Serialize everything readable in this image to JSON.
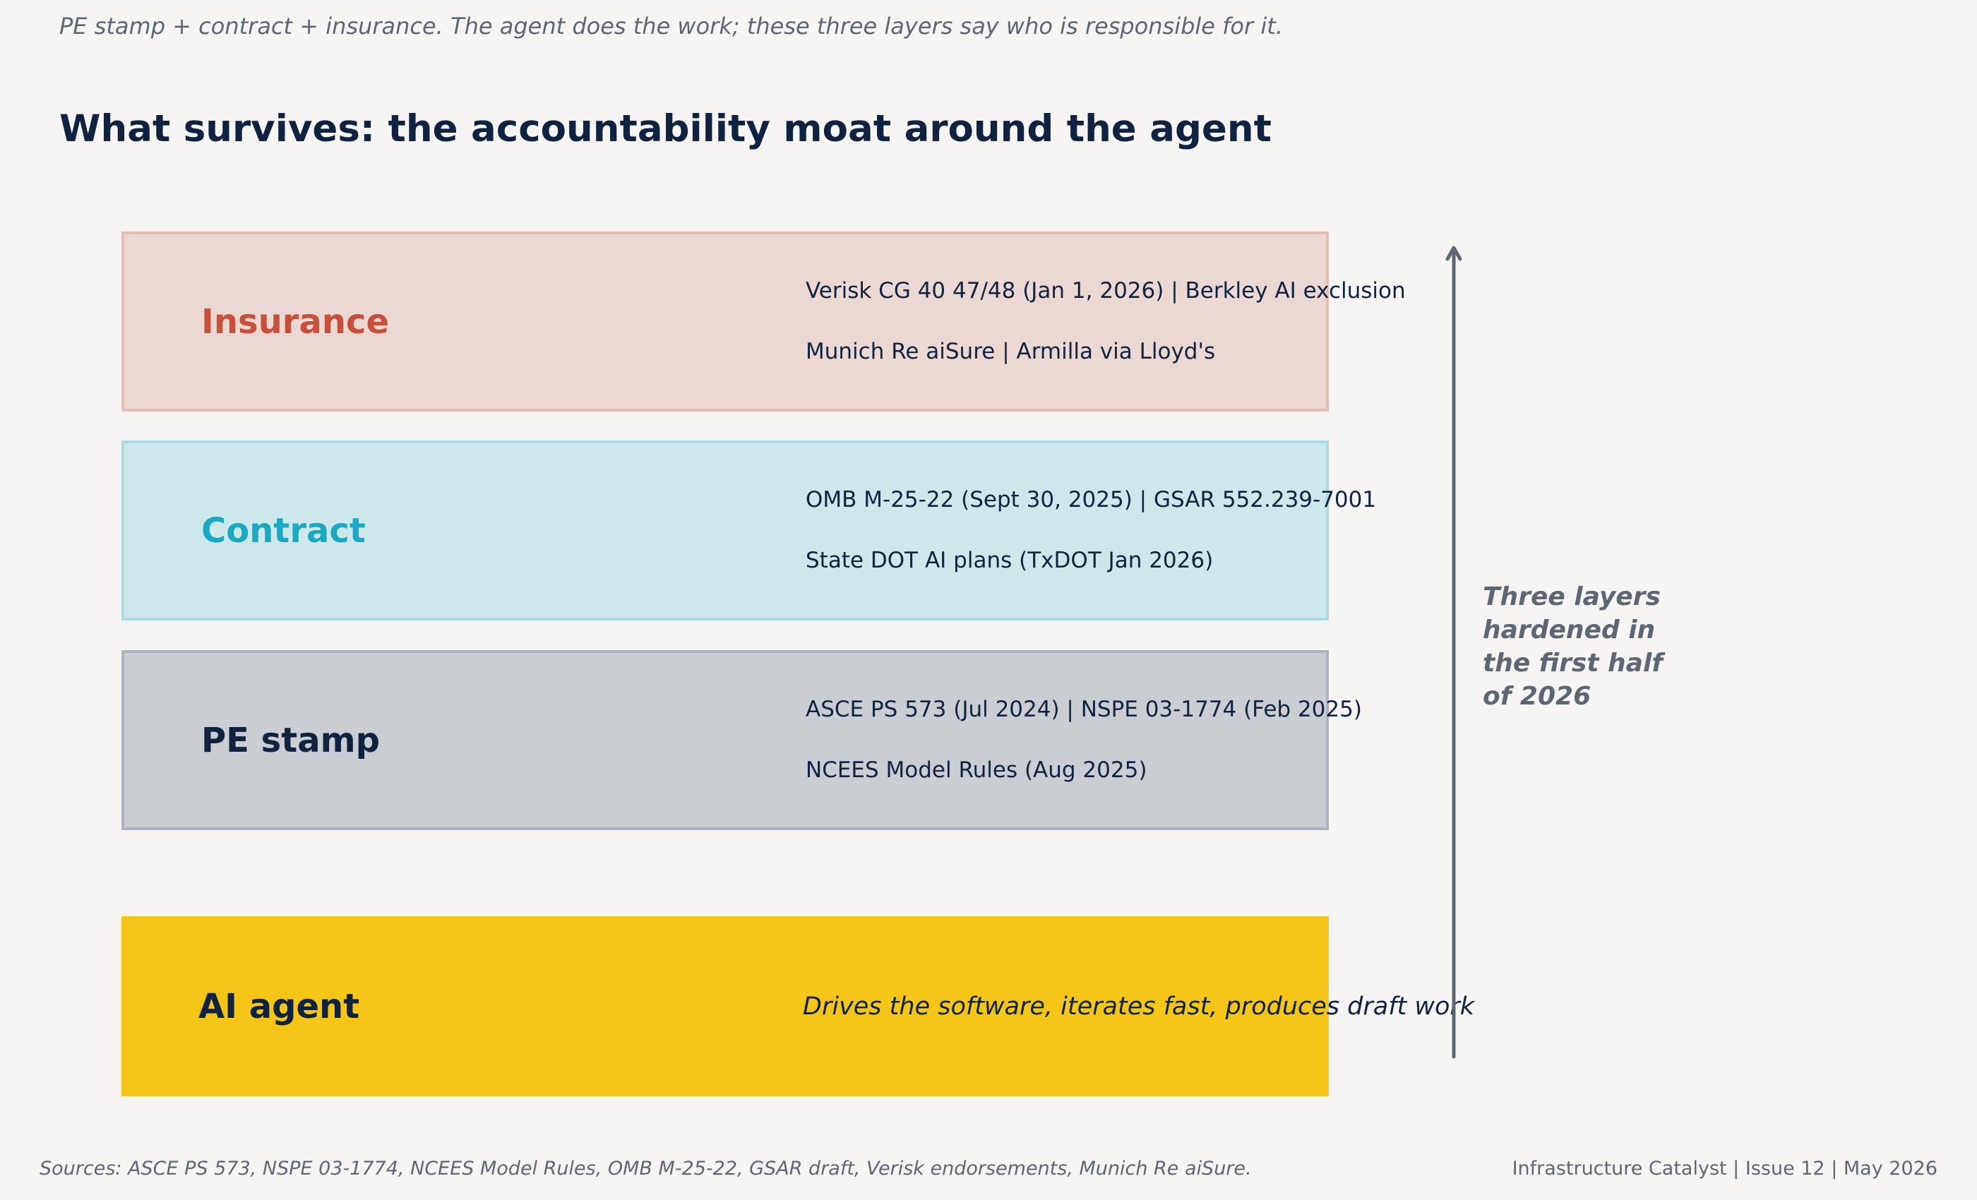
{
  "header": {
    "subtitle": "PE stamp + contract + insurance. The agent does the work; these three layers say who is responsible for it.",
    "title": "What survives: the accountability moat around the agent"
  },
  "layers": {
    "insurance": {
      "name": "Insurance",
      "line1": "Verisk CG 40 47/48 (Jan 1, 2026)   |   Berkley AI exclusion",
      "line2": "Munich Re aiSure   |   Armilla via Lloyd's",
      "color": "#c8503a"
    },
    "contract": {
      "name": "Contract",
      "line1": "OMB M-25-22 (Sept 30, 2025)   |   GSAR 552.239-7001",
      "line2": "State DOT AI plans (TxDOT Jan 2026)",
      "color": "#1aa8c2"
    },
    "pe_stamp": {
      "name": "PE stamp",
      "line1": "ASCE PS 573 (Jul 2024)   |   NSPE 03-1774 (Feb 2025)",
      "line2": "NCEES Model Rules (Aug 2025)",
      "color": "#0f2340"
    },
    "ai_agent": {
      "name": "AI agent",
      "description": "Drives the software, iterates fast, produces draft work",
      "color": "#f5c518"
    }
  },
  "arrow": {
    "icon": "up-arrow-icon",
    "note": [
      "Three layers",
      "hardened in",
      "the first half",
      "of 2026"
    ]
  },
  "footer": {
    "sources": "Sources: ASCE PS 573, NSPE 03-1774, NCEES Model Rules, OMB M-25-22, GSAR draft, Verisk endorsements, Munich Re aiSure.",
    "publication": "Infrastructure Catalyst  |  Issue 12  |  May 2026"
  }
}
